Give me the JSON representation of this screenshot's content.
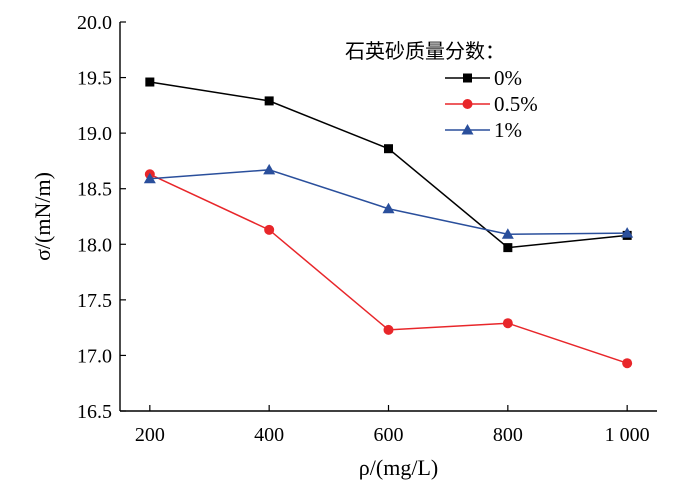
{
  "chart_data": {
    "type": "line",
    "categories": [
      "200",
      "400",
      "600",
      "800",
      "1 000"
    ],
    "x": [
      200,
      400,
      600,
      800,
      1000
    ],
    "xlabel": "ρ/(mg/L)",
    "ylabel": "σ/(mN/m)",
    "xlim": [
      150,
      1050
    ],
    "ylim": [
      16.5,
      20.0
    ],
    "yticks": [
      "16.5",
      "17.0",
      "17.5",
      "18.0",
      "18.5",
      "19.0",
      "19.5",
      "20.0"
    ],
    "ytick_values": [
      16.5,
      17.0,
      17.5,
      18.0,
      18.5,
      19.0,
      19.5,
      20.0
    ],
    "legend_title": "石英砂质量分数：",
    "legend_position": "top-right",
    "grid": false,
    "series": [
      {
        "name": "0%",
        "values": [
          19.46,
          19.29,
          18.86,
          17.97,
          18.08
        ],
        "color": "#000000",
        "marker": "square"
      },
      {
        "name": "0.5%",
        "values": [
          18.63,
          18.13,
          17.23,
          17.29,
          16.93
        ],
        "color": "#e8262a",
        "marker": "circle"
      },
      {
        "name": "1%",
        "values": [
          18.59,
          18.67,
          18.32,
          18.09,
          18.1
        ],
        "color": "#2a4f9c",
        "marker": "triangle"
      }
    ]
  }
}
